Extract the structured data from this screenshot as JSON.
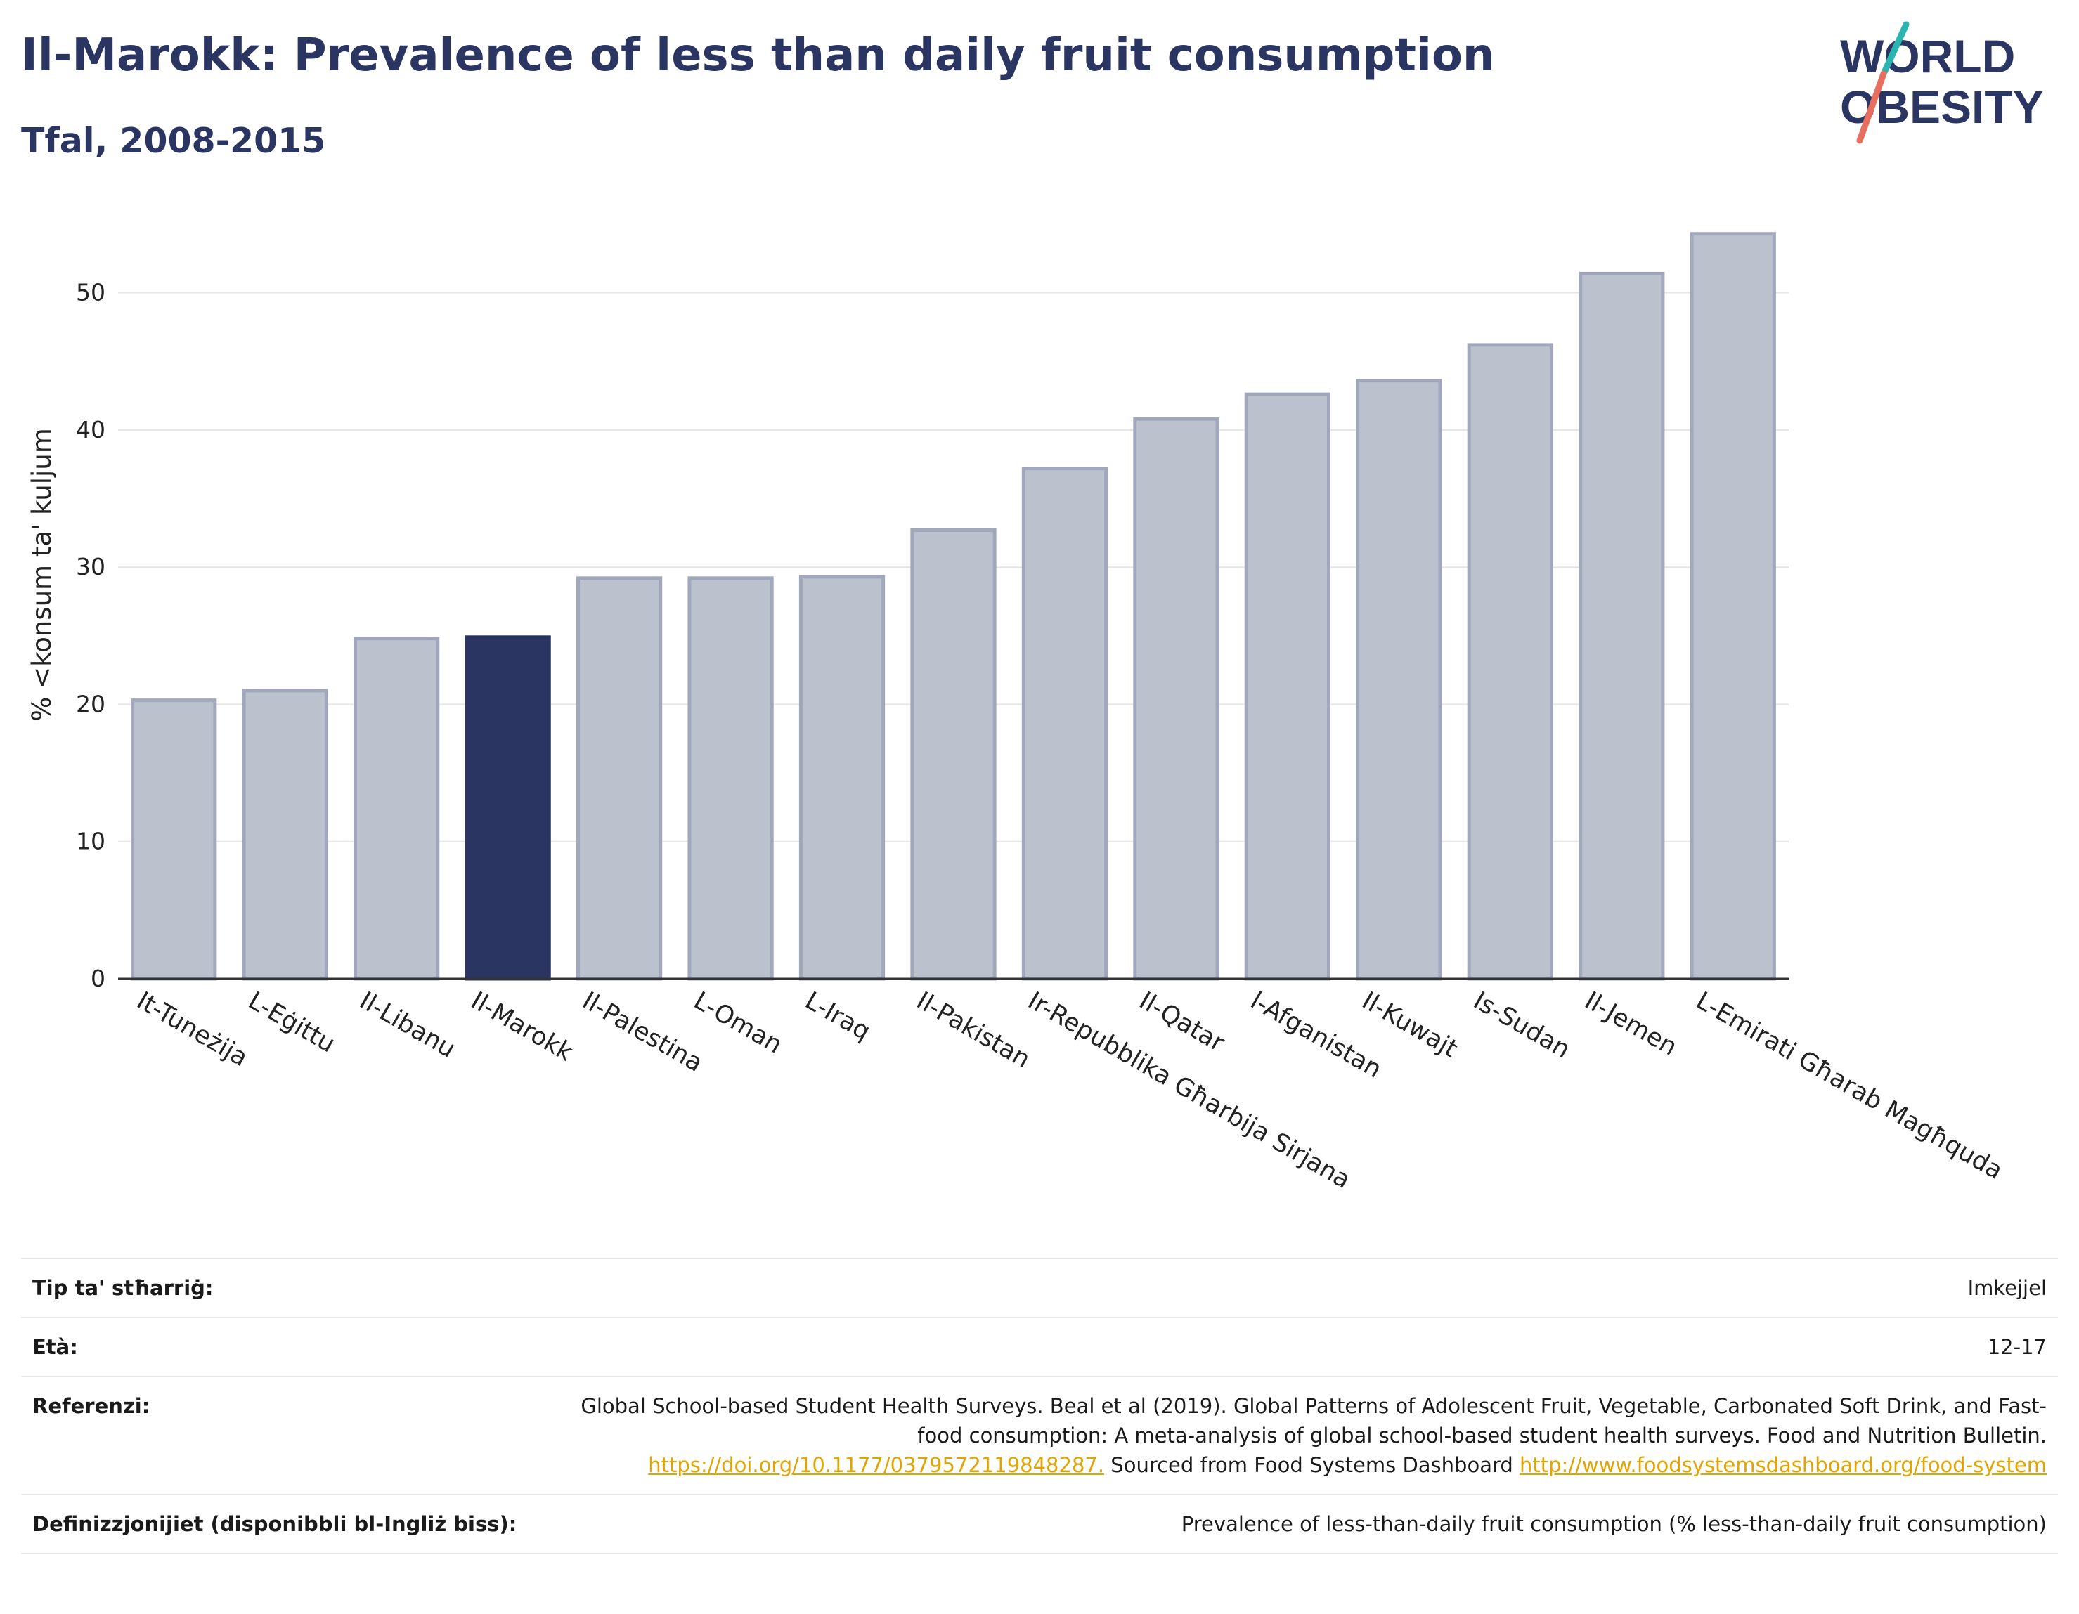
{
  "header": {
    "title": "Il-Marokk: Prevalence of less than daily fruit consumption",
    "subtitle": "Tfal, 2008-2015"
  },
  "logo": {
    "line1": "WORLD",
    "line2": "OBESITY"
  },
  "colors": {
    "title": "#2b3562",
    "bar_default": "#bcc1ce",
    "bar_default_stroke": "#a2a8bc",
    "bar_highlight": "#2b3562",
    "grid": "#e6e6e6",
    "axis": "#333333",
    "logo_teal": "#2bb5b0",
    "logo_coral": "#e86f5f",
    "link": "#e2a400"
  },
  "chart_data": {
    "type": "bar",
    "categories": [
      "It-Tuneżija",
      "L-Eġittu",
      "Il-Libanu",
      "Il-Marokk",
      "Il-Palestina",
      "L-Oman",
      "L-Iraq",
      "Il-Pakistan",
      "Ir-Repubblika Għarbija Sirjana",
      "Il-Qatar",
      "l-Afganistan",
      "Il-Kuwajt",
      "Is-Sudan",
      "Il-Jemen",
      "L-Emirati Għarab Magħquda"
    ],
    "values": [
      20.3,
      21.0,
      24.8,
      24.9,
      29.2,
      29.2,
      29.3,
      32.7,
      37.2,
      40.8,
      42.6,
      43.6,
      46.2,
      51.4,
      54.3
    ],
    "highlight": "Il-Marokk",
    "ylabel": "% <konsum ta' kuljum",
    "xlabel": "",
    "ylim": [
      0,
      57
    ],
    "yticks": [
      0,
      10,
      20,
      30,
      40,
      50
    ],
    "grid": true
  },
  "info": {
    "rows": [
      {
        "key": "Tip ta' stħarriġ:",
        "value": "Imkejjel"
      },
      {
        "key": "Età:",
        "value": "12-17"
      }
    ],
    "references": {
      "key": "Referenzi:",
      "text1": "Global School-based Student Health Surveys. Beal et al (2019). Global Patterns of Adolescent Fruit, Vegetable, Carbonated Soft Drink, and Fast-food consumption: A meta-analysis of global school-based student health surveys. Food and Nutrition Bulletin.",
      "link1": "https://doi.org/10.1177/0379572119848287.",
      "text2": "Sourced from Food Systems Dashboard",
      "link2": "http://www.foodsystemsdashboard.org/food-system"
    },
    "definitions": {
      "key": "Definizzjonijiet (disponibbli bl-Ingliż biss):",
      "value": "Prevalence of less-than-daily fruit consumption (% less-than-daily fruit consumption)"
    }
  }
}
